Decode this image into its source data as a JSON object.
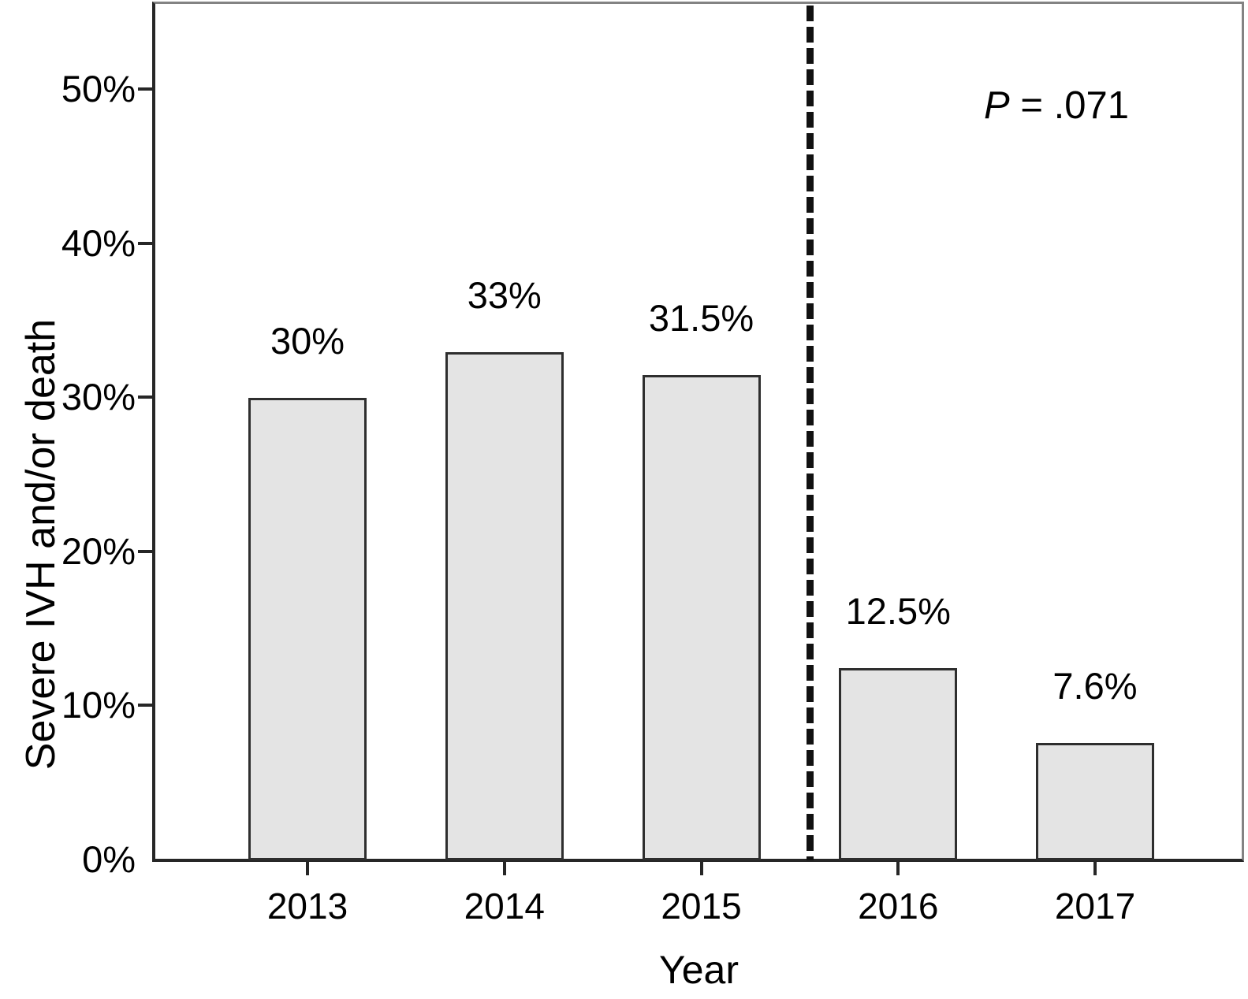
{
  "chart_data": {
    "type": "bar",
    "title": "",
    "xlabel": "Year",
    "ylabel": "Severe IVH and/or death",
    "categories": [
      "2013",
      "2014",
      "2015",
      "2016",
      "2017"
    ],
    "values": [
      30,
      33,
      31.5,
      12.5,
      7.6
    ],
    "bar_labels": [
      "30%",
      "33%",
      "31.5%",
      "12.5%",
      "7.6%"
    ],
    "yticks": [
      {
        "value": 0,
        "label": "0%"
      },
      {
        "value": 10,
        "label": "10%"
      },
      {
        "value": 20,
        "label": "20%"
      },
      {
        "value": 30,
        "label": "30%"
      },
      {
        "value": 40,
        "label": "40%"
      },
      {
        "value": 50,
        "label": "50%"
      }
    ],
    "ylim": [
      0,
      55.7
    ],
    "grid": "off",
    "legend": "none",
    "annotation": {
      "p_symbol": "P",
      "p_rest": " = .071",
      "position": "top-right"
    },
    "divider": {
      "style": "dashed-vertical",
      "between": [
        "2015",
        "2016"
      ]
    },
    "colors": {
      "bar_fill": "#e4e4e4",
      "bar_border": "#2e2e2e",
      "axis": "#262626",
      "box_border": "#838383",
      "text": "#000000"
    }
  }
}
